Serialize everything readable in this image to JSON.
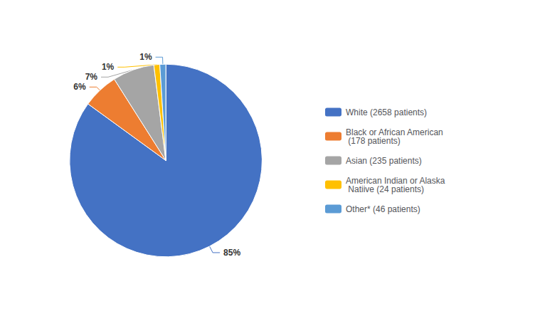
{
  "chart_data": {
    "type": "pie",
    "categories": [
      "White (2658 patients)",
      "Black or African American\n (178 patients)",
      "Asian (235 patients)",
      "American Indian or Alaska\n Natiive (24 patients)",
      "Other* (46 patients)"
    ],
    "values": [
      85,
      6,
      7,
      1,
      1
    ],
    "value_labels": [
      "85%",
      "6%",
      "7%",
      "1%",
      "1%"
    ],
    "colors": [
      "#4472C4",
      "#ED7D31",
      "#A5A5A5",
      "#FFC000",
      "#5B9BD5"
    ],
    "data_labels": true,
    "legend": "right"
  }
}
